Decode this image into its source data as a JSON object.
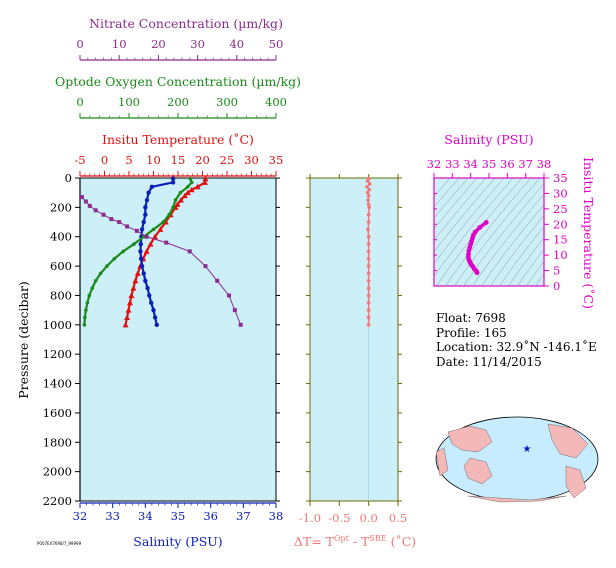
{
  "colors": {
    "nitrate": "#8b2c8f",
    "oxygen": "#1a8a1a",
    "temperature": "#e01010",
    "salinity": "#0a1fb5",
    "dt": "#f07878",
    "ts": "#e000c8",
    "panel_fill": "#cdeff8",
    "depth_axis": "#000000",
    "dt_axis": "#6b6b00"
  },
  "labels": {
    "nitrate_axis_title": "Nitrate Concentration (µm/kg)",
    "oxygen_axis_title": "Optode Oxygen Concentration (µm/kg)",
    "temperature_axis_title": "Insitu Temperature (˚C)",
    "salinity_axis_title": "Salinity (PSU)",
    "pressure_axis_title": "Pressure (decibar)",
    "dt_axis_title": "ΔT= T",
    "dt_axis_sup1": "Opt",
    "dt_axis_mid": " - T",
    "dt_axis_sup2": "SBE",
    "dt_axis_end": " (˚C)",
    "ts_salinity_title": "Salinity (PSU)",
    "ts_temperature_title": "Insitu Temperature (˚C)",
    "footer_code": "P007EX7698/7_99999"
  },
  "info": {
    "float": "Float:  7698",
    "profile": "Profile:  165",
    "location": "Location:  32.9˚N  -146.1˚E",
    "date": "Date:  11/14/2015"
  },
  "chart_data": [
    {
      "type": "line",
      "panel": "profile",
      "ylabel": "Pressure (decibar)",
      "ylim": [
        2200,
        0
      ],
      "y_ticks": [
        0,
        200,
        400,
        600,
        800,
        1000,
        1200,
        1400,
        1600,
        1800,
        2000,
        2200
      ],
      "axes": {
        "nitrate": {
          "label": "Nitrate Concentration (µm/kg)",
          "lim": [
            0,
            50
          ],
          "ticks": [
            0,
            10,
            20,
            30,
            40,
            50
          ]
        },
        "oxygen": {
          "label": "Optode Oxygen Concentration (µm/kg)",
          "lim": [
            0,
            400
          ],
          "ticks": [
            0,
            100,
            200,
            300,
            400
          ]
        },
        "temperature": {
          "label": "Insitu Temperature (˚C)",
          "lim": [
            -5,
            35
          ],
          "ticks": [
            -5,
            0,
            5,
            10,
            15,
            20,
            25,
            30,
            35
          ]
        },
        "salinity": {
          "label": "Salinity (PSU)",
          "lim": [
            32,
            38
          ],
          "ticks": [
            32,
            33,
            34,
            35,
            36,
            37,
            38
          ]
        }
      },
      "series": [
        {
          "key": "temperature",
          "pressure": [
            5,
            30,
            60,
            80,
            100,
            120,
            150,
            180,
            200,
            250,
            300,
            350,
            400,
            450,
            500,
            550,
            600,
            650,
            700,
            750,
            800,
            850,
            900,
            950,
            1000
          ],
          "values": [
            20.6,
            20.5,
            19.0,
            17.8,
            17.0,
            16.4,
            15.6,
            14.9,
            14.5,
            13.5,
            12.5,
            11.4,
            10.3,
            9.4,
            8.6,
            7.9,
            7.3,
            6.8,
            6.3,
            5.9,
            5.5,
            5.2,
            4.9,
            4.6,
            4.3
          ]
        },
        {
          "key": "salinity",
          "pressure": [
            5,
            30,
            60,
            100,
            150,
            200,
            250,
            300,
            350,
            400,
            450,
            500,
            550,
            600,
            650,
            700,
            750,
            800,
            850,
            900,
            950,
            1000
          ],
          "values": [
            34.85,
            34.85,
            34.2,
            34.1,
            34.05,
            34.0,
            34.0,
            33.95,
            33.9,
            33.88,
            33.86,
            33.85,
            33.87,
            33.9,
            33.95,
            34.0,
            34.07,
            34.12,
            34.18,
            34.25,
            34.3,
            34.35
          ]
        },
        {
          "key": "oxygen",
          "pressure": [
            5,
            30,
            60,
            100,
            150,
            200,
            250,
            300,
            350,
            400,
            450,
            500,
            550,
            600,
            650,
            700,
            750,
            800,
            850,
            900,
            950,
            1000
          ],
          "values": [
            225,
            228,
            220,
            205,
            195,
            190,
            182,
            170,
            150,
            130,
            110,
            88,
            70,
            55,
            42,
            32,
            25,
            19,
            15,
            12,
            10,
            9
          ]
        },
        {
          "key": "nitrate",
          "pressure": [
            130,
            160,
            190,
            220,
            250,
            280,
            300,
            330,
            360,
            400,
            440,
            500,
            600,
            700,
            800,
            900,
            1000
          ],
          "values": [
            0.5,
            1.5,
            2.5,
            4.0,
            6.0,
            8.0,
            10.0,
            12.0,
            14.5,
            17.0,
            22.0,
            28.0,
            32.0,
            35.0,
            38.0,
            39.5,
            41.0
          ]
        }
      ]
    },
    {
      "type": "scatter",
      "panel": "delta_t",
      "xlabel": "ΔT= T^Opt - T^SBE (˚C)",
      "xlim": [
        -1.0,
        0.5
      ],
      "x_ticks": [
        -1.0,
        -0.5,
        0.0,
        0.5
      ],
      "ylim": [
        2200,
        0
      ],
      "pressure": [
        5,
        20,
        40,
        60,
        80,
        100,
        120,
        150,
        180,
        200,
        250,
        300,
        350,
        400,
        450,
        500,
        550,
        600,
        650,
        700,
        750,
        800,
        850,
        900,
        950,
        1000
      ],
      "values": [
        0.0,
        -0.02,
        0.02,
        -0.03,
        0.01,
        -0.02,
        0.0,
        -0.01,
        0.0,
        0.01,
        0.0,
        0.0,
        -0.01,
        0.0,
        0.0,
        0.0,
        0.0,
        0.0,
        0.0,
        0.0,
        0.0,
        0.0,
        0.0,
        0.0,
        0.0,
        0.0
      ]
    },
    {
      "type": "scatter",
      "panel": "ts_diagram",
      "xlabel": "Salinity (PSU)",
      "ylabel": "Insitu Temperature (˚C)",
      "xlim": [
        32,
        38
      ],
      "ylim": [
        0,
        35
      ],
      "x_ticks": [
        32,
        33,
        34,
        35,
        36,
        37,
        38
      ],
      "y_ticks": [
        0,
        5,
        10,
        15,
        20,
        25,
        30,
        35
      ],
      "salinity": [
        34.85,
        34.5,
        34.25,
        34.15,
        34.1,
        34.05,
        34.0,
        33.95,
        33.9,
        33.88,
        33.87,
        33.9,
        33.95,
        34.0,
        34.05,
        34.12,
        34.2,
        34.3,
        34.35
      ],
      "temperature": [
        20.6,
        19.0,
        17.5,
        16.5,
        15.5,
        14.5,
        13.5,
        12.5,
        11.4,
        10.3,
        9.4,
        8.6,
        7.9,
        7.3,
        6.8,
        6.3,
        5.5,
        4.9,
        4.3
      ]
    }
  ]
}
